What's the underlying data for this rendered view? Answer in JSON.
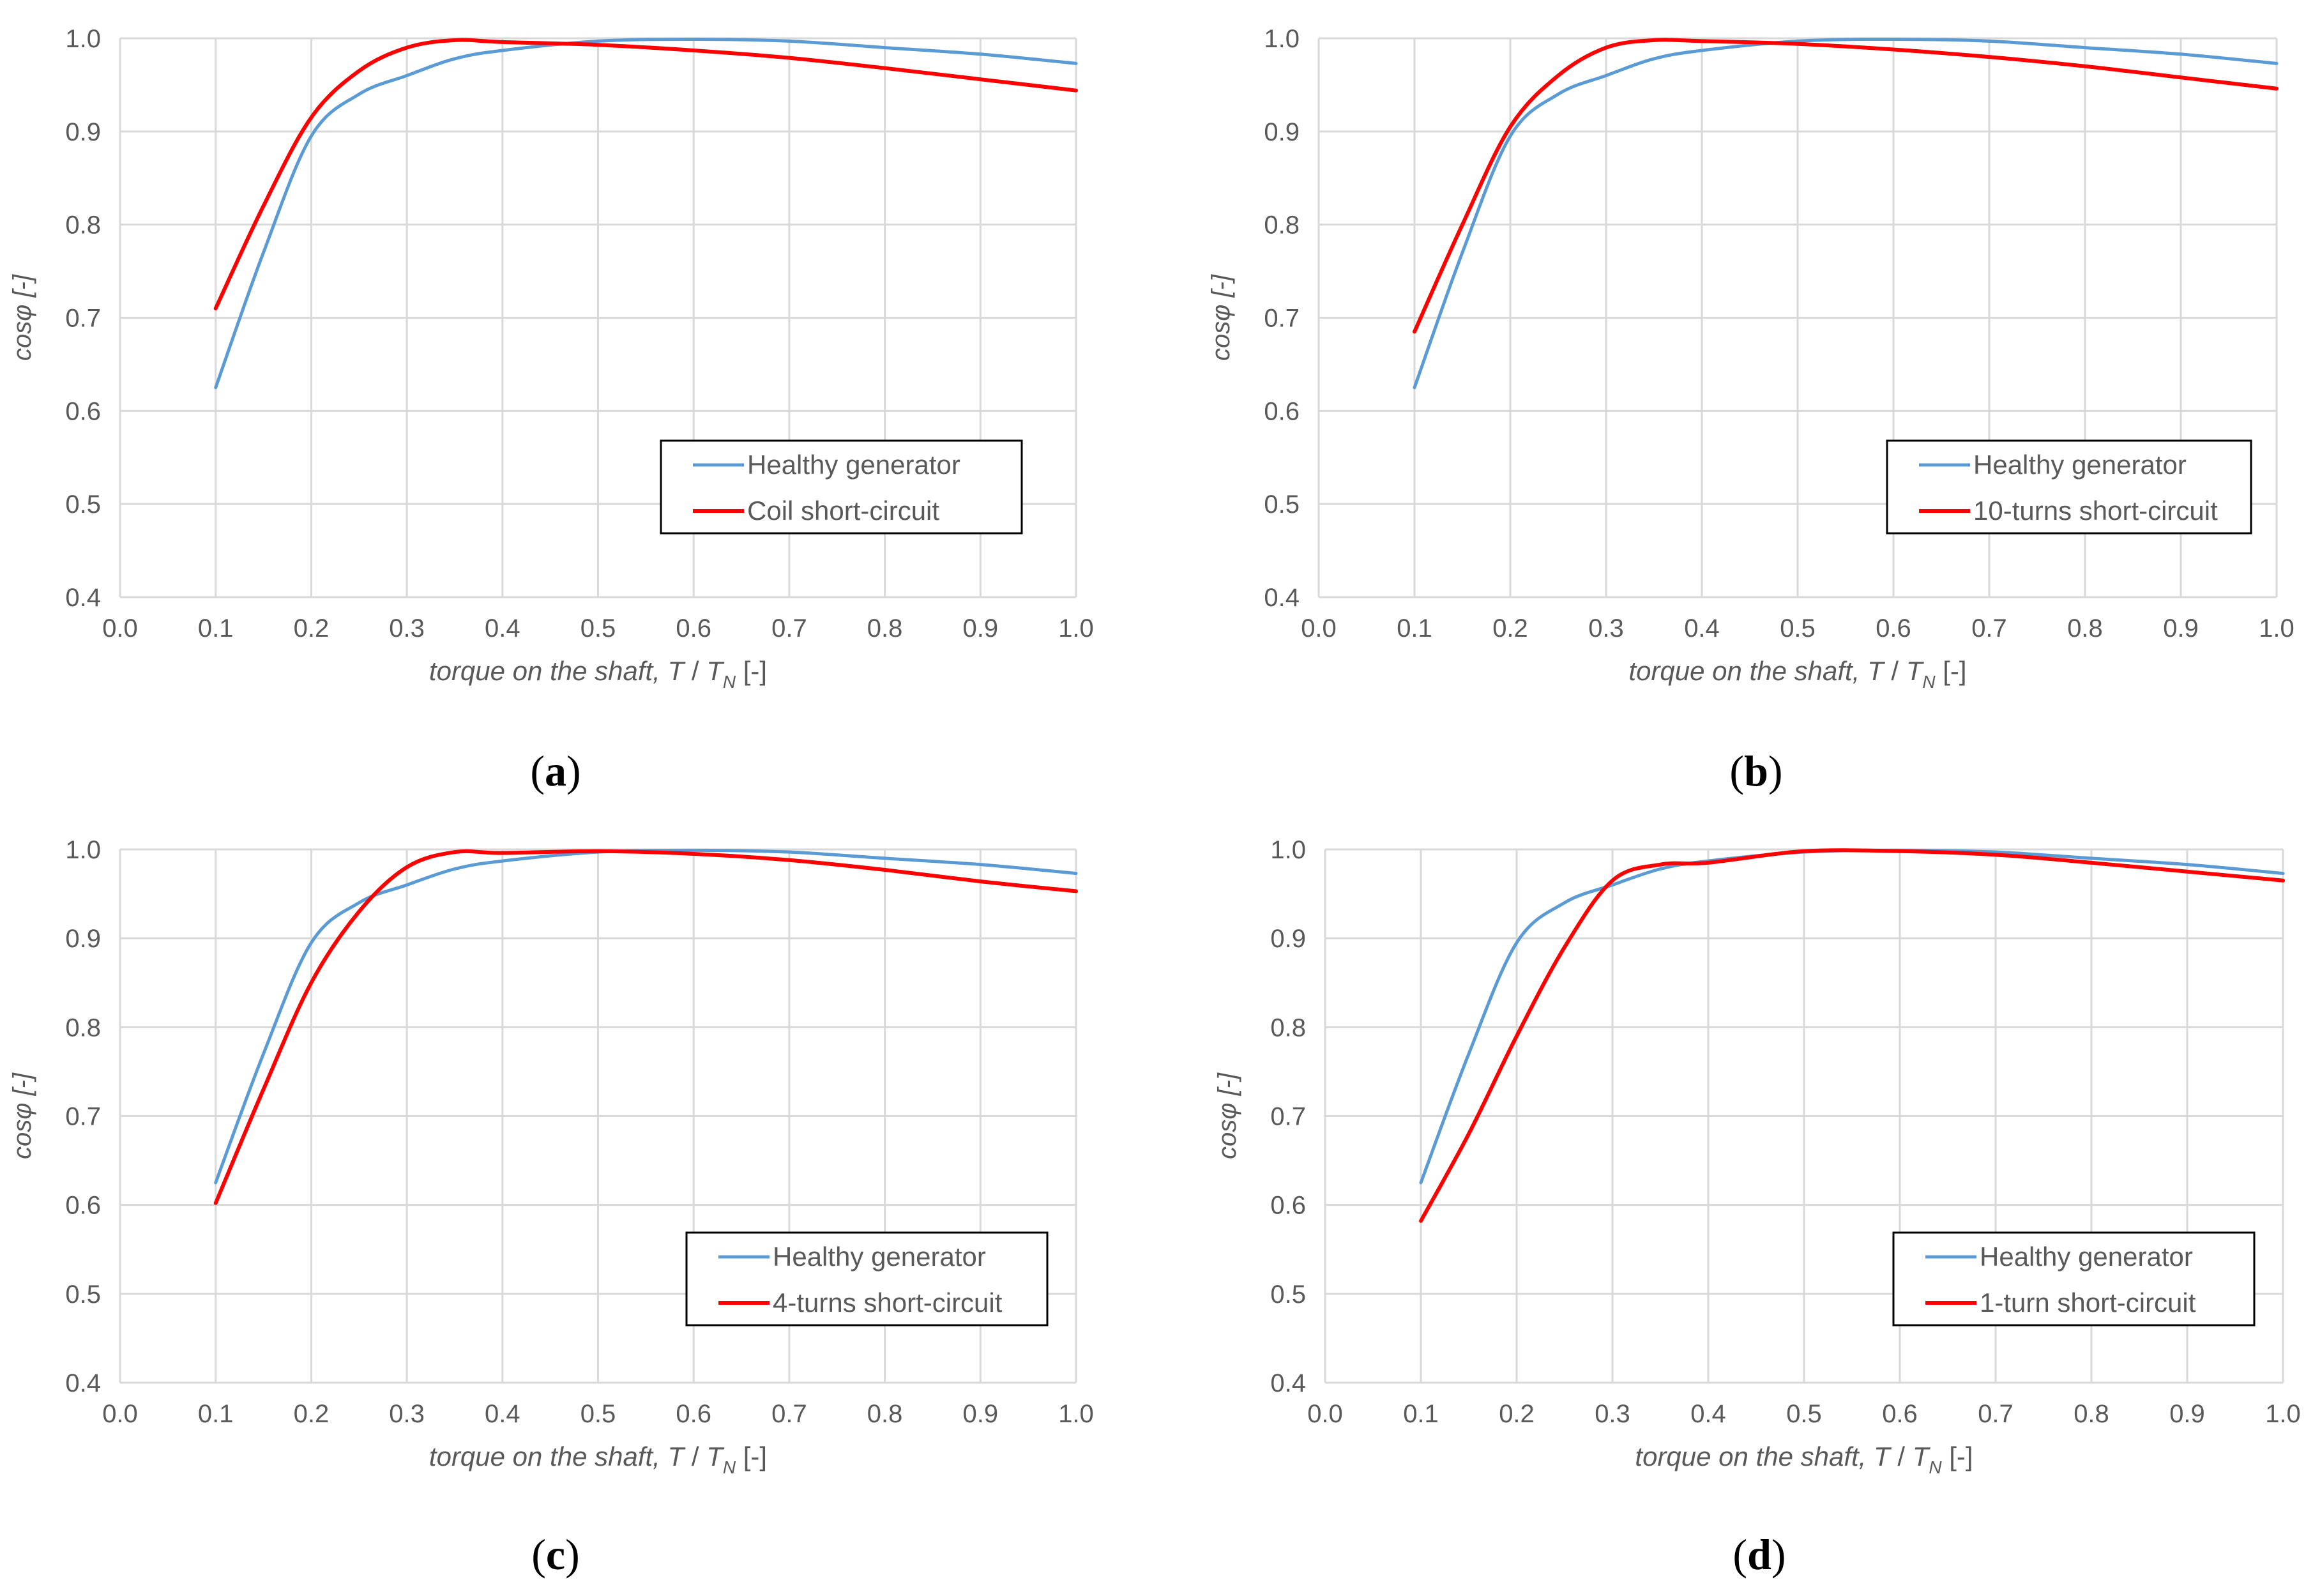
{
  "figure": {
    "label_open": "(",
    "label_close": ")"
  },
  "colors": {
    "healthy": "#5B9BD5",
    "fault": "#FF0000",
    "grid": "#D9D9D9",
    "tick_text": "#595959",
    "legend_border": "#000000"
  },
  "chart_data": [
    {
      "panel": "a",
      "type": "line",
      "ylabel": "cosφ [-]",
      "xlabel_prefix": "torque on the shaft, ",
      "xlabel_T": "T",
      "xlabel_slash": " / ",
      "xlabel_TN": "T",
      "xlabel_sub": "N",
      "xlabel_suffix": " [-]",
      "xlim": [
        0.0,
        1.0
      ],
      "ylim": [
        0.4,
        1.0
      ],
      "xticks": [
        "0.0",
        "0.1",
        "0.2",
        "0.3",
        "0.4",
        "0.5",
        "0.6",
        "0.7",
        "0.8",
        "0.9",
        "1.0"
      ],
      "yticks": [
        "0.4",
        "0.5",
        "0.6",
        "0.7",
        "0.8",
        "0.9",
        "1.0"
      ],
      "legend_placement": "bottom-right",
      "x": [
        0.1,
        0.15,
        0.2,
        0.25,
        0.3,
        0.35,
        0.4,
        0.5,
        0.6,
        0.7,
        0.8,
        0.9,
        1.0
      ],
      "series": [
        {
          "name": "Healthy generator",
          "color_key": "healthy",
          "values": [
            0.625,
            0.77,
            0.895,
            0.94,
            0.96,
            0.978,
            0.987,
            0.997,
            0.999,
            0.997,
            0.99,
            0.983,
            0.973
          ]
        },
        {
          "name": "Coil short-circuit",
          "color_key": "fault",
          "values": [
            0.71,
            0.82,
            0.915,
            0.965,
            0.99,
            0.998,
            0.996,
            0.993,
            0.987,
            0.979,
            0.968,
            0.956,
            0.944
          ]
        }
      ]
    },
    {
      "panel": "b",
      "type": "line",
      "ylabel": "cosφ [-]",
      "xlabel_prefix": "torque on the shaft, ",
      "xlabel_T": "T",
      "xlabel_slash": " / ",
      "xlabel_TN": "T",
      "xlabel_sub": "N",
      "xlabel_suffix": " [-]",
      "xlim": [
        0.0,
        1.0
      ],
      "ylim": [
        0.4,
        1.0
      ],
      "xticks": [
        "0.0",
        "0.1",
        "0.2",
        "0.3",
        "0.4",
        "0.5",
        "0.6",
        "0.7",
        "0.8",
        "0.9",
        "1.0"
      ],
      "yticks": [
        "0.4",
        "0.5",
        "0.6",
        "0.7",
        "0.8",
        "0.9",
        "1.0"
      ],
      "legend_placement": "bottom-right",
      "x": [
        0.1,
        0.15,
        0.2,
        0.25,
        0.3,
        0.35,
        0.4,
        0.5,
        0.6,
        0.7,
        0.8,
        0.9,
        1.0
      ],
      "series": [
        {
          "name": "Healthy generator",
          "color_key": "healthy",
          "values": [
            0.625,
            0.77,
            0.895,
            0.94,
            0.96,
            0.978,
            0.987,
            0.997,
            0.999,
            0.997,
            0.99,
            0.983,
            0.973
          ]
        },
        {
          "name": "10-turns short-circuit",
          "color_key": "fault",
          "values": [
            0.685,
            0.8,
            0.905,
            0.96,
            0.99,
            0.998,
            0.997,
            0.994,
            0.988,
            0.98,
            0.97,
            0.958,
            0.946
          ]
        }
      ]
    },
    {
      "panel": "c",
      "type": "line",
      "ylabel": "cosφ [-]",
      "xlabel_prefix": "torque on the shaft, ",
      "xlabel_T": "T",
      "xlabel_slash": " / ",
      "xlabel_TN": "T",
      "xlabel_sub": "N",
      "xlabel_suffix": " [-]",
      "xlim": [
        0.0,
        1.0
      ],
      "ylim": [
        0.4,
        1.0
      ],
      "xticks": [
        "0.0",
        "0.1",
        "0.2",
        "0.3",
        "0.4",
        "0.5",
        "0.6",
        "0.7",
        "0.8",
        "0.9",
        "1.0"
      ],
      "yticks": [
        "0.4",
        "0.5",
        "0.6",
        "0.7",
        "0.8",
        "0.9",
        "1.0"
      ],
      "legend_placement": "bottom-right",
      "x": [
        0.1,
        0.15,
        0.2,
        0.25,
        0.3,
        0.35,
        0.4,
        0.5,
        0.6,
        0.7,
        0.8,
        0.9,
        1.0
      ],
      "series": [
        {
          "name": "Healthy generator",
          "color_key": "healthy",
          "values": [
            0.625,
            0.77,
            0.895,
            0.94,
            0.96,
            0.978,
            0.987,
            0.997,
            0.999,
            0.997,
            0.99,
            0.983,
            0.973
          ]
        },
        {
          "name": "4-turns short-circuit",
          "color_key": "fault",
          "values": [
            0.602,
            0.73,
            0.85,
            0.93,
            0.98,
            0.997,
            0.996,
            0.998,
            0.995,
            0.988,
            0.977,
            0.964,
            0.953
          ]
        }
      ]
    },
    {
      "panel": "d",
      "type": "line",
      "ylabel": "cosφ [-]",
      "xlabel_prefix": "torque on the shaft, ",
      "xlabel_T": "T",
      "xlabel_slash": " / ",
      "xlabel_TN": "T",
      "xlabel_sub": "N",
      "xlabel_suffix": " [-]",
      "xlim": [
        0.0,
        1.0
      ],
      "ylim": [
        0.4,
        1.0
      ],
      "xticks": [
        "0.0",
        "0.1",
        "0.2",
        "0.3",
        "0.4",
        "0.5",
        "0.6",
        "0.7",
        "0.8",
        "0.9",
        "1.0"
      ],
      "yticks": [
        "0.4",
        "0.5",
        "0.6",
        "0.7",
        "0.8",
        "0.9",
        "1.0"
      ],
      "legend_placement": "bottom-right",
      "x": [
        0.1,
        0.15,
        0.2,
        0.25,
        0.3,
        0.35,
        0.4,
        0.5,
        0.6,
        0.7,
        0.8,
        0.9,
        1.0
      ],
      "series": [
        {
          "name": "Healthy generator",
          "color_key": "healthy",
          "values": [
            0.625,
            0.77,
            0.895,
            0.94,
            0.96,
            0.978,
            0.987,
            0.997,
            0.999,
            0.997,
            0.99,
            0.983,
            0.973
          ]
        },
        {
          "name": "1-turn short-circuit",
          "color_key": "fault",
          "values": [
            0.582,
            0.68,
            0.79,
            0.89,
            0.965,
            0.983,
            0.985,
            0.998,
            0.998,
            0.994,
            0.985,
            0.975,
            0.965
          ]
        }
      ]
    }
  ]
}
